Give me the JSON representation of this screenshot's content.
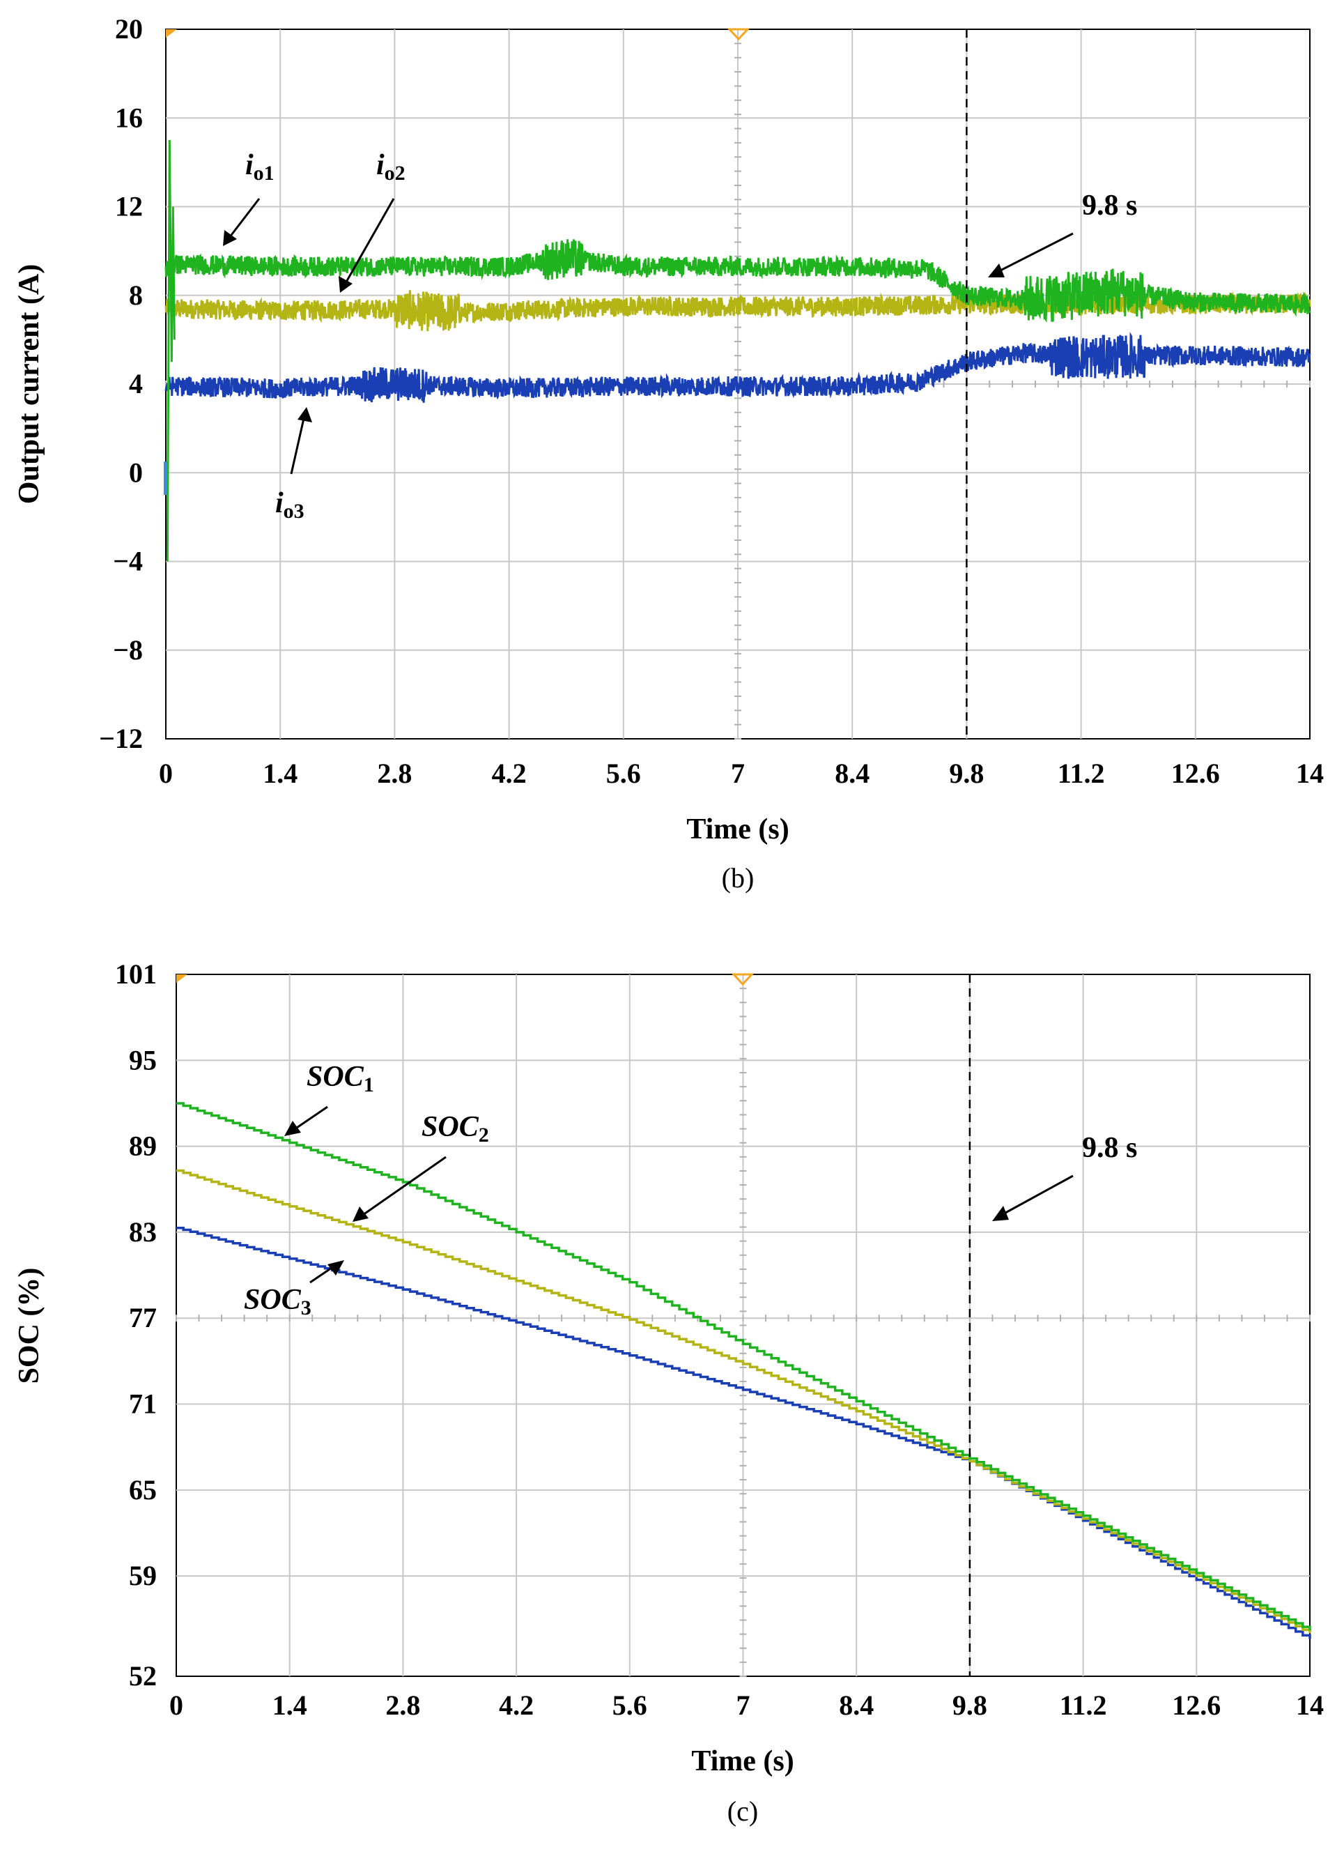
{
  "chart_data": [
    {
      "type": "line",
      "caption": "(b)",
      "xlabel": "Time (s)",
      "ylabel": "Output current (A)",
      "xlim": [
        0,
        14
      ],
      "ylim": [
        -12,
        20
      ],
      "xticks": [
        0,
        1.4,
        2.8,
        4.2,
        5.6,
        7,
        8.4,
        9.8,
        11.2,
        12.6,
        14
      ],
      "xtick_labels": [
        "0",
        "1.4",
        "2.8",
        "4.2",
        "5.6",
        "7",
        "8.4",
        "9.8",
        "11.2",
        "12.6",
        "14"
      ],
      "yticks": [
        -12,
        -8,
        -4,
        0,
        4,
        8,
        12,
        16,
        20
      ],
      "ytick_labels": [
        "−12",
        "−8",
        "−4",
        "0",
        "4",
        "8",
        "12",
        "16",
        "20"
      ],
      "grid": true,
      "vline": {
        "x": 9.8,
        "label": "9.8 s"
      },
      "series": [
        {
          "name": "io1",
          "label_main": "i",
          "label_sub": "o1",
          "color": "#1fb41f",
          "x": [
            0,
            0.1,
            1.4,
            4.2,
            4.9,
            5.6,
            8.4,
            9.3,
            9.8,
            10.5,
            11.2,
            11.6,
            12.6,
            14
          ],
          "y": [
            9.2,
            9.4,
            9.3,
            9.3,
            9.7,
            9.3,
            9.3,
            9.2,
            8.0,
            7.8,
            8.0,
            8.2,
            7.7,
            7.6
          ]
        },
        {
          "name": "io2",
          "label_main": "i",
          "label_sub": "o2",
          "color": "#b4b414",
          "x": [
            0,
            0.1,
            1.4,
            2.8,
            3.4,
            5.6,
            8.4,
            9.8,
            11.2,
            12.6,
            14
          ],
          "y": [
            7.4,
            7.4,
            7.3,
            7.4,
            7.2,
            7.5,
            7.5,
            7.6,
            7.6,
            7.6,
            7.6
          ]
        },
        {
          "name": "io3",
          "label_main": "i",
          "label_sub": "o3",
          "color": "#1a3fb4",
          "x": [
            0,
            0.1,
            1.4,
            2.8,
            4.2,
            5.6,
            8.4,
            9.2,
            9.8,
            10.5,
            11.2,
            12.6,
            14
          ],
          "y": [
            3.9,
            3.9,
            3.8,
            4.0,
            3.8,
            3.9,
            3.9,
            4.1,
            5.0,
            5.4,
            5.2,
            5.3,
            5.2
          ]
        }
      ]
    },
    {
      "type": "line",
      "caption": "(c)",
      "xlabel": "Time (s)",
      "ylabel": "SOC (%)",
      "xlim": [
        0,
        14
      ],
      "ylim": [
        52,
        101
      ],
      "xticks": [
        0,
        1.4,
        2.8,
        4.2,
        5.6,
        7,
        8.4,
        9.8,
        11.2,
        12.6,
        14
      ],
      "xtick_labels": [
        "0",
        "1.4",
        "2.8",
        "4.2",
        "5.6",
        "7",
        "8.4",
        "9.8",
        "11.2",
        "12.6",
        "14"
      ],
      "yticks": [
        52,
        59,
        65,
        71,
        77,
        83,
        89,
        95,
        101
      ],
      "ytick_labels": [
        "52",
        "59",
        "65",
        "71",
        "77",
        "83",
        "89",
        "95",
        "101"
      ],
      "grid": true,
      "vline": {
        "x": 9.8,
        "label": "9.8 s"
      },
      "series": [
        {
          "name": "SOC1",
          "label_main": "SOC",
          "label_sub": "1",
          "color": "#1fb41f",
          "x": [
            0,
            2.8,
            5.6,
            7,
            8.4,
            9.8,
            14
          ],
          "y": [
            92,
            86.5,
            79.5,
            75.2,
            71.2,
            67.2,
            55.2
          ]
        },
        {
          "name": "SOC2",
          "label_main": "SOC",
          "label_sub": "2",
          "color": "#b4b414",
          "x": [
            0,
            2.8,
            5.6,
            7,
            8.4,
            9.8,
            14
          ],
          "y": [
            87.3,
            82.3,
            76.9,
            73.8,
            70.5,
            67.0,
            55.0
          ]
        },
        {
          "name": "SOC3",
          "label_main": "SOC",
          "label_sub": "3",
          "color": "#1a3fb4",
          "x": [
            0,
            2.8,
            5.6,
            7,
            8.4,
            9.8,
            14
          ],
          "y": [
            83.3,
            79.0,
            74.4,
            72.0,
            69.6,
            67.0,
            54.6
          ]
        }
      ]
    }
  ]
}
